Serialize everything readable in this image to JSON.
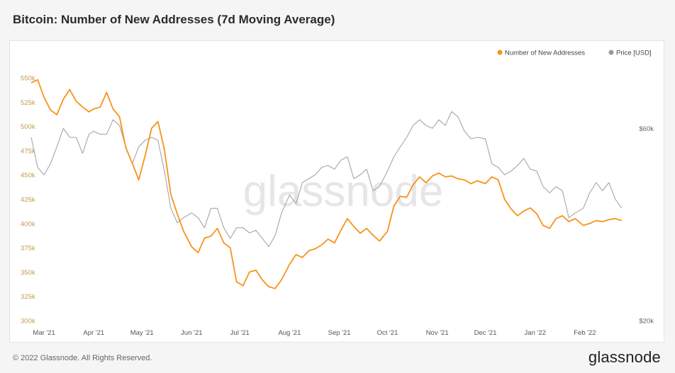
{
  "page": {
    "title": "Bitcoin: Number of New Addresses (7d Moving Average)",
    "copyright": "© 2022 Glassnode. All Rights Reserved.",
    "brand": "glassnode",
    "watermark": "glassnode"
  },
  "colors": {
    "addresses": "#f7931a",
    "price": "#a6a6a6",
    "left_axis_text": "#c49a4d",
    "right_axis_text": "#666666"
  },
  "chart_data": {
    "type": "line",
    "title": "Bitcoin: Number of New Addresses (7d Moving Average)",
    "legend_position": "top-right",
    "grid": false,
    "x_range": [
      "2021-02-21",
      "2022-02-28"
    ],
    "x_tick_labels": [
      "Mar '21",
      "Apr '21",
      "May '21",
      "Jun '21",
      "Jul '21",
      "Aug '21",
      "Sep '21",
      "Oct '21",
      "Nov '21",
      "Dec '21",
      "Jan '22",
      "Feb '22"
    ],
    "left_axis": {
      "ylim": [
        300000,
        560000
      ],
      "ticks": [
        300000,
        325000,
        350000,
        375000,
        400000,
        425000,
        450000,
        475000,
        500000,
        525000,
        550000
      ],
      "tick_labels": [
        "300k",
        "325k",
        "350k",
        "375k",
        "400k",
        "425k",
        "450k",
        "475k",
        "500k",
        "525k",
        "550k"
      ]
    },
    "right_axis": {
      "scale": "log",
      "ylim": [
        20000,
        90000
      ],
      "ticks": [
        20000,
        60000
      ],
      "tick_labels": [
        "$20k",
        "$60k"
      ]
    },
    "series": [
      {
        "name": "Number of New Addresses",
        "axis": "left",
        "dates": [
          "2021-02-21",
          "2021-02-25",
          "2021-03-01",
          "2021-03-05",
          "2021-03-09",
          "2021-03-13",
          "2021-03-17",
          "2021-03-21",
          "2021-03-25",
          "2021-03-29",
          "2021-04-01",
          "2021-04-05",
          "2021-04-09",
          "2021-04-13",
          "2021-04-17",
          "2021-04-21",
          "2021-04-25",
          "2021-04-29",
          "2021-05-03",
          "2021-05-07",
          "2021-05-11",
          "2021-05-15",
          "2021-05-19",
          "2021-05-23",
          "2021-05-27",
          "2021-06-01",
          "2021-06-05",
          "2021-06-09",
          "2021-06-13",
          "2021-06-17",
          "2021-06-21",
          "2021-06-25",
          "2021-06-29",
          "2021-07-03",
          "2021-07-07",
          "2021-07-11",
          "2021-07-15",
          "2021-07-19",
          "2021-07-23",
          "2021-07-27",
          "2021-08-01",
          "2021-08-05",
          "2021-08-09",
          "2021-08-13",
          "2021-08-17",
          "2021-08-21",
          "2021-08-25",
          "2021-08-29",
          "2021-09-02",
          "2021-09-06",
          "2021-09-10",
          "2021-09-14",
          "2021-09-18",
          "2021-09-22",
          "2021-09-26",
          "2021-10-01",
          "2021-10-05",
          "2021-10-09",
          "2021-10-13",
          "2021-10-17",
          "2021-10-21",
          "2021-10-25",
          "2021-10-29",
          "2021-11-02",
          "2021-11-06",
          "2021-11-10",
          "2021-11-14",
          "2021-11-18",
          "2021-11-22",
          "2021-11-26",
          "2021-12-01",
          "2021-12-05",
          "2021-12-09",
          "2021-12-13",
          "2021-12-17",
          "2021-12-21",
          "2021-12-25",
          "2021-12-29",
          "2022-01-02",
          "2022-01-06",
          "2022-01-10",
          "2022-01-14",
          "2022-01-18",
          "2022-01-22",
          "2022-01-26",
          "2022-01-31",
          "2022-02-04",
          "2022-02-08",
          "2022-02-12",
          "2022-02-16",
          "2022-02-20",
          "2022-02-24"
        ],
        "values": [
          545000,
          548000,
          530000,
          517000,
          512000,
          528000,
          538000,
          526000,
          520000,
          515000,
          518000,
          520000,
          535000,
          518000,
          510000,
          478000,
          462000,
          445000,
          470000,
          498000,
          505000,
          476000,
          430000,
          410000,
          392000,
          376000,
          370000,
          385000,
          387000,
          395000,
          380000,
          375000,
          340000,
          336000,
          350000,
          352000,
          342000,
          335000,
          333000,
          342000,
          358000,
          368000,
          365000,
          372000,
          374000,
          378000,
          384000,
          380000,
          393000,
          405000,
          397000,
          390000,
          395000,
          388000,
          382000,
          392000,
          418000,
          428000,
          427000,
          440000,
          448000,
          442000,
          449000,
          452000,
          448000,
          449000,
          446000,
          445000,
          441000,
          444000,
          441000,
          448000,
          445000,
          425000,
          415000,
          408000,
          413000,
          416000,
          410000,
          398000,
          395000,
          405000,
          408000,
          402000,
          405000,
          398000,
          400000,
          403000,
          402000,
          404000,
          405000,
          403000
        ]
      },
      {
        "name": "Price [USD]",
        "axis": "right",
        "dates": [
          "2021-02-21",
          "2021-02-25",
          "2021-03-01",
          "2021-03-05",
          "2021-03-09",
          "2021-03-13",
          "2021-03-17",
          "2021-03-21",
          "2021-03-25",
          "2021-03-29",
          "2021-04-01",
          "2021-04-05",
          "2021-04-09",
          "2021-04-13",
          "2021-04-17",
          "2021-04-21",
          "2021-04-25",
          "2021-04-29",
          "2021-05-03",
          "2021-05-07",
          "2021-05-11",
          "2021-05-15",
          "2021-05-19",
          "2021-05-23",
          "2021-05-27",
          "2021-06-01",
          "2021-06-05",
          "2021-06-09",
          "2021-06-13",
          "2021-06-17",
          "2021-06-21",
          "2021-06-25",
          "2021-06-29",
          "2021-07-03",
          "2021-07-07",
          "2021-07-11",
          "2021-07-15",
          "2021-07-19",
          "2021-07-23",
          "2021-07-27",
          "2021-08-01",
          "2021-08-05",
          "2021-08-09",
          "2021-08-13",
          "2021-08-17",
          "2021-08-21",
          "2021-08-25",
          "2021-08-29",
          "2021-09-02",
          "2021-09-06",
          "2021-09-10",
          "2021-09-14",
          "2021-09-18",
          "2021-09-22",
          "2021-09-26",
          "2021-10-01",
          "2021-10-05",
          "2021-10-09",
          "2021-10-13",
          "2021-10-17",
          "2021-10-21",
          "2021-10-25",
          "2021-10-29",
          "2021-11-02",
          "2021-11-06",
          "2021-11-10",
          "2021-11-14",
          "2021-11-18",
          "2021-11-22",
          "2021-11-26",
          "2021-12-01",
          "2021-12-05",
          "2021-12-09",
          "2021-12-13",
          "2021-12-17",
          "2021-12-21",
          "2021-12-25",
          "2021-12-29",
          "2022-01-02",
          "2022-01-06",
          "2022-01-10",
          "2022-01-14",
          "2022-01-18",
          "2022-01-22",
          "2022-01-26",
          "2022-01-31",
          "2022-02-04",
          "2022-02-08",
          "2022-02-12",
          "2022-02-16",
          "2022-02-20",
          "2022-02-24"
        ],
        "values": [
          57000,
          48000,
          46000,
          49000,
          54000,
          60000,
          57000,
          57000,
          52000,
          58000,
          59000,
          58000,
          58000,
          63000,
          61000,
          54000,
          49000,
          54000,
          56000,
          57000,
          56000,
          47000,
          38000,
          35000,
          36000,
          37000,
          36000,
          34000,
          38000,
          38000,
          34000,
          32000,
          34000,
          34000,
          33000,
          33500,
          32000,
          30500,
          32500,
          37000,
          41000,
          39000,
          44000,
          45000,
          46000,
          48000,
          48500,
          47500,
          50000,
          51000,
          45000,
          46000,
          47500,
          42000,
          43000,
          47000,
          51000,
          54000,
          57000,
          61000,
          63000,
          61000,
          60000,
          63000,
          61000,
          66000,
          64000,
          59000,
          56500,
          57000,
          56500,
          49000,
          48000,
          46000,
          47000,
          48500,
          50500,
          47500,
          47000,
          43000,
          41500,
          43000,
          42000,
          36000,
          37000,
          38000,
          41500,
          44000,
          42000,
          44000,
          40000,
          38000
        ]
      }
    ]
  }
}
